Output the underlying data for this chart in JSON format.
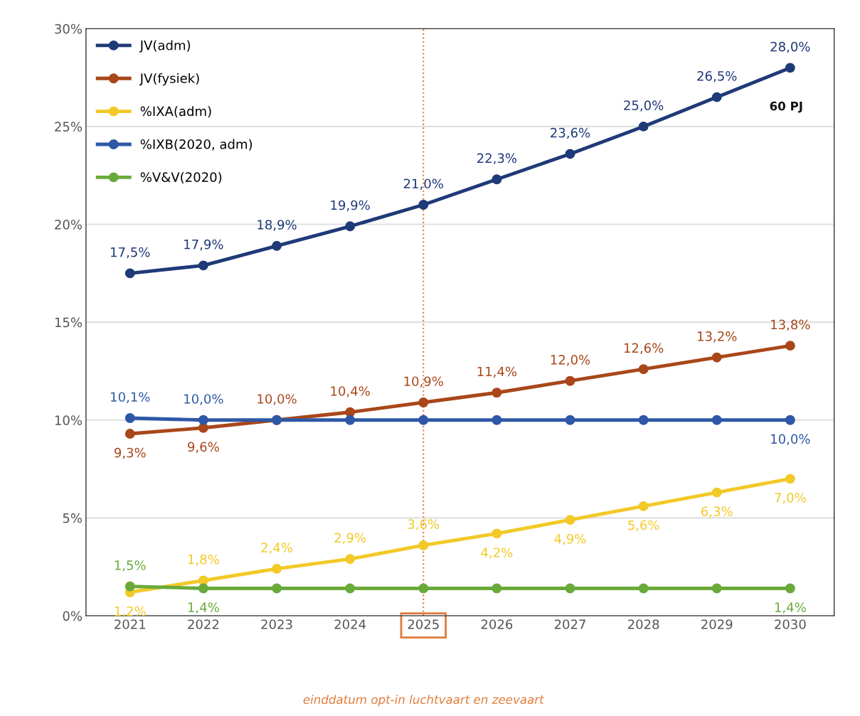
{
  "chart_data": {
    "type": "line",
    "categories": [
      "2021",
      "2022",
      "2023",
      "2024",
      "2025",
      "2026",
      "2027",
      "2028",
      "2029",
      "2030"
    ],
    "series": [
      {
        "name": "JV(adm)",
        "color": "#1f3a78",
        "values": [
          17.5,
          17.9,
          18.9,
          19.9,
          21.0,
          22.3,
          23.6,
          25.0,
          26.5,
          28.0
        ],
        "value_labels": [
          "17,5%",
          "17,9%",
          "18,9%",
          "19,9%",
          "21,0%",
          "22,3%",
          "23,6%",
          "25,0%",
          "26,5%",
          "28,0%"
        ]
      },
      {
        "name": "JV(fysiek)",
        "color": "#a9471a",
        "values": [
          9.3,
          9.6,
          10.0,
          10.4,
          10.9,
          11.4,
          12.0,
          12.6,
          13.2,
          13.8
        ],
        "value_labels": [
          "9,3%",
          "9,6%",
          "10,0%",
          "10,4%",
          "10,9%",
          "11,4%",
          "12,0%",
          "12,6%",
          "13,2%",
          "13,8%"
        ]
      },
      {
        "name": "%IXA(adm)",
        "color": "#f2c927",
        "values": [
          1.2,
          1.8,
          2.4,
          2.9,
          3.6,
          4.2,
          4.9,
          5.6,
          6.3,
          7.0
        ],
        "value_labels": [
          "1,2%",
          "1,8%",
          "2,4%",
          "2,9%",
          "3,6%",
          "4,2%",
          "4,9%",
          "5,6%",
          "6,3%",
          "7,0%"
        ]
      },
      {
        "name": "%IXB(2020, adm)",
        "color": "#2e58a6",
        "values": [
          10.1,
          10.0,
          10.0,
          10.0,
          10.0,
          10.0,
          10.0,
          10.0,
          10.0,
          10.0
        ],
        "value_labels": [
          "10,1%",
          "10,0%",
          null,
          null,
          null,
          null,
          null,
          null,
          null,
          "10,0%"
        ]
      },
      {
        "name": "%V&V(2020)",
        "color": "#6aaa3a",
        "values": [
          1.5,
          1.4,
          1.4,
          1.4,
          1.4,
          1.4,
          1.4,
          1.4,
          1.4,
          1.4
        ],
        "value_labels": [
          "1,5%",
          "1,4%",
          null,
          null,
          null,
          null,
          null,
          null,
          null,
          "1,4%"
        ]
      }
    ],
    "ylim": [
      0,
      30
    ],
    "yticks": [
      {
        "value": 0,
        "label": "0%"
      },
      {
        "value": 5,
        "label": "5%"
      },
      {
        "value": 10,
        "label": "10%"
      },
      {
        "value": 15,
        "label": "15%"
      },
      {
        "value": 20,
        "label": "20%"
      },
      {
        "value": 25,
        "label": "25%"
      },
      {
        "value": 30,
        "label": "30%"
      }
    ],
    "grid": "y",
    "legend": "top left",
    "marker": "circle",
    "line_style": "solid",
    "ref_lines": [
      {
        "axis": "x",
        "value": "2025",
        "label": "einddatum opt-in luchtvaart en zeevaart",
        "color": "#e07b39",
        "line_style": "dotted"
      }
    ],
    "annotations": [
      {
        "text": "60 PJ",
        "x": "2030",
        "y": 28.0
      }
    ]
  }
}
